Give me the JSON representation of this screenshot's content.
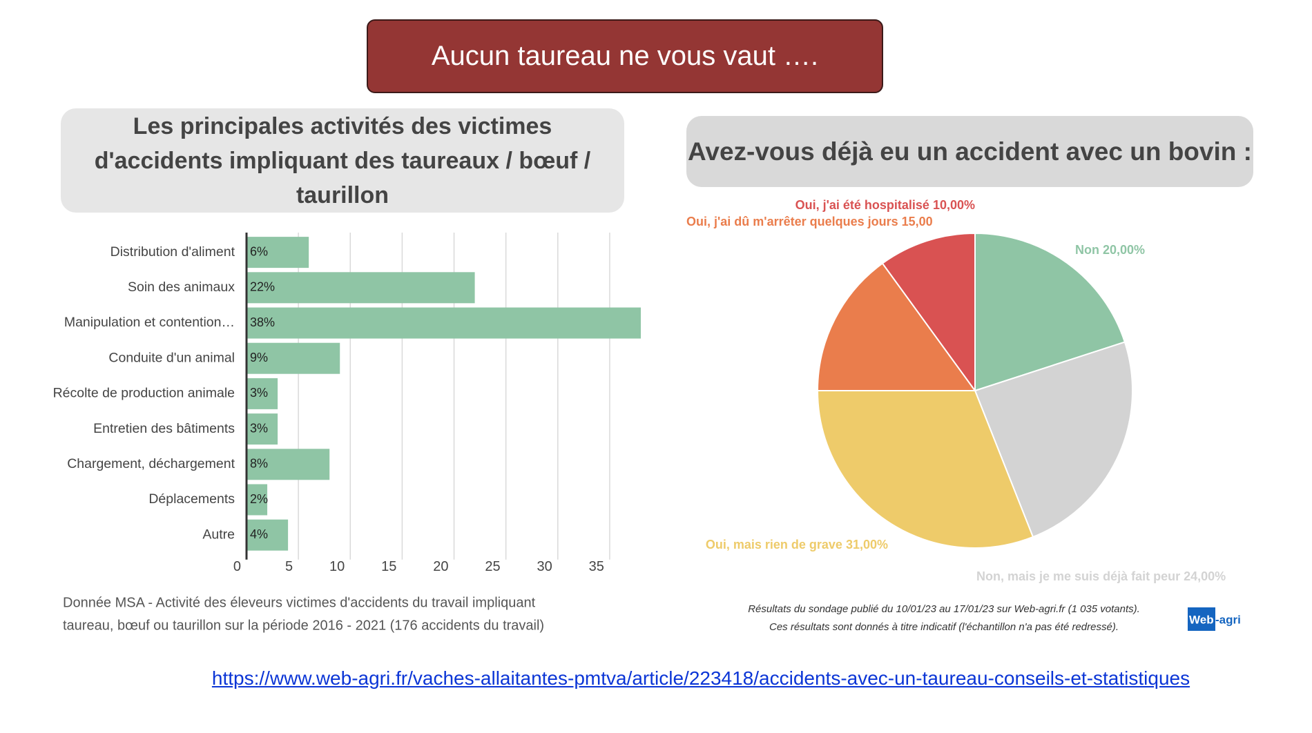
{
  "slide_title": "Aucun taureau ne vous vaut ….",
  "link": "https://www.web-agri.fr/vaches-allaitantes-pmtva/article/223418/accidents-avec-un-taureau-conseils-et-statistiques",
  "chart_data": [
    {
      "type": "bar",
      "title": "Les principales activités des victimes d'accidents impliquant des taureaux / bœuf / taurillon",
      "categories": [
        "Distribution d'aliment",
        "Soin des animaux",
        "Manipulation et contention…",
        "Conduite d'un animal",
        "Récolte de production animale",
        "Entretien des bâtiments",
        "Chargement, déchargement",
        "Déplacements",
        "Autre"
      ],
      "values": [
        6,
        22,
        38,
        9,
        3,
        3,
        8,
        2,
        4
      ],
      "value_labels": [
        "6%",
        "22%",
        "38%",
        "9%",
        "3%",
        "3%",
        "8%",
        "2%",
        "4%"
      ],
      "color": "#8fc5a5",
      "xlim": [
        0,
        38
      ],
      "xticks": [
        0,
        5,
        10,
        15,
        20,
        25,
        30,
        35
      ],
      "grid": true,
      "source": [
        "Donnée MSA - Activité des éleveurs victimes d'accidents du travail impliquant",
        "taureau, bœuf ou taurillon sur la période 2016 - 2021 (176 accidents du travail)"
      ]
    },
    {
      "type": "pie",
      "title": "Avez-vous déjà eu un accident avec un bovin :",
      "values": [
        20,
        24,
        31,
        15,
        10
      ],
      "value_labels": [
        "Non 20,00%",
        "Non, mais je me suis déjà fait peur 24,00%",
        "Oui, mais rien de grave 31,00%",
        "Oui, j'ai dû m'arrêter quelques jours 15,00",
        "Oui, j'ai été hospitalisé 10,00%"
      ],
      "colors": [
        "#8fc5a5",
        "#d3d3d3",
        "#eecb6a",
        "#ea7d4c",
        "#d95252"
      ],
      "source": [
        "Résultats du sondage publié du 10/01/23 au 17/01/23 sur Web-agri.fr (1 035 votants).",
        "Ces résultats sont donnés à titre indicatif (l'échantillon n'a pas été redressé)."
      ],
      "logo": [
        "Web",
        "-agri"
      ]
    }
  ]
}
